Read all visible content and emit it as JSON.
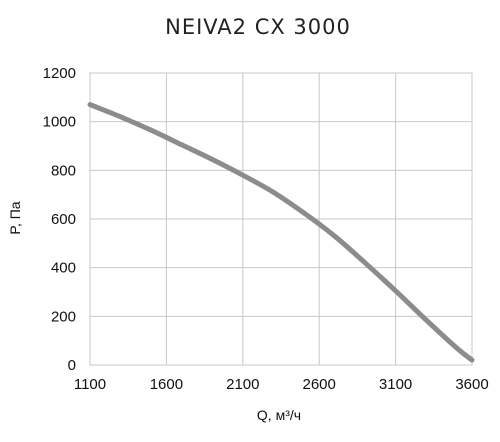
{
  "chart_data": {
    "type": "line",
    "title": "NEIVA2 CX 3000",
    "xlabel": "Q, м³/ч",
    "ylabel": "P, Па",
    "xlim": [
      1100,
      3600
    ],
    "ylim": [
      0,
      1200
    ],
    "x_ticks": [
      1100,
      1600,
      2100,
      2600,
      3100,
      3600
    ],
    "y_ticks": [
      0,
      200,
      400,
      600,
      800,
      1000,
      1200
    ],
    "grid": true,
    "series": [
      {
        "color": "#8c8c8c",
        "x": [
          1100,
          1300,
          1500,
          1700,
          1900,
          2100,
          2300,
          2500,
          2700,
          2900,
          3100,
          3300,
          3500,
          3600
        ],
        "y": [
          1070,
          1020,
          965,
          905,
          845,
          780,
          710,
          625,
          530,
          420,
          305,
          185,
          70,
          20
        ]
      }
    ]
  }
}
